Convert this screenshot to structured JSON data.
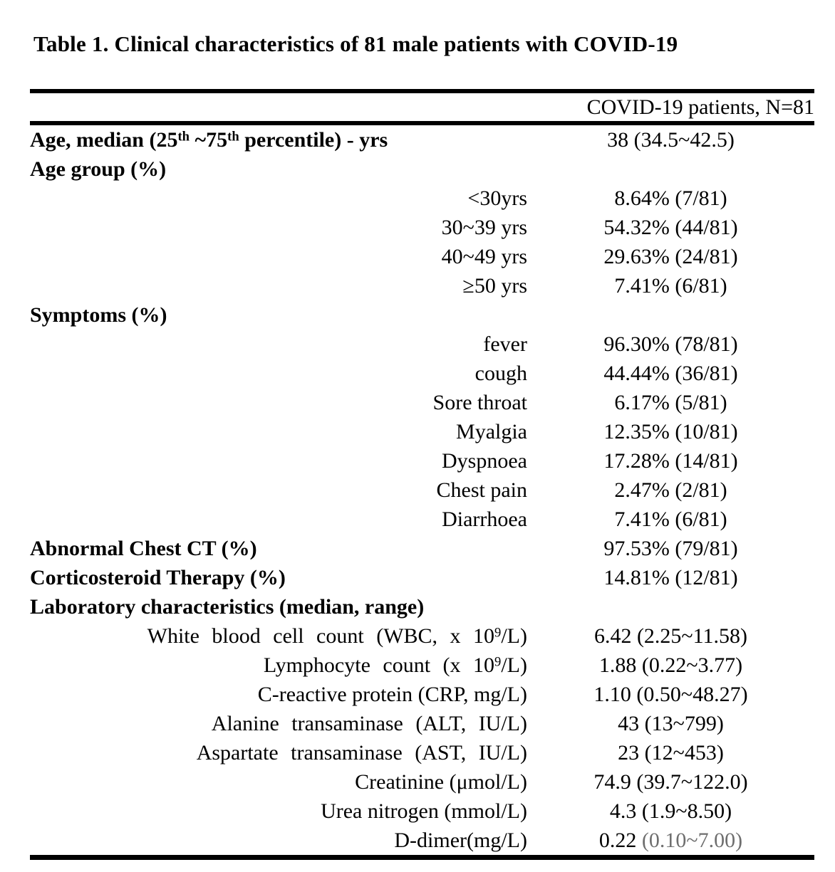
{
  "page": {
    "title": "Table 1. Clinical characteristics of 81 male patients with COVID-19"
  },
  "colors": {
    "background": "#ffffff",
    "text": "#000000",
    "rule": "#000000",
    "faded_value": "#6e6e6e"
  },
  "table": {
    "header": {
      "label_column": "",
      "value_column": "COVID-19 patients, N=81"
    },
    "rows": [
      {
        "bold": true,
        "label_parts": [
          {
            "text": "Age, median (25"
          },
          {
            "text": "th",
            "sup": true
          },
          {
            "text": " ~75"
          },
          {
            "text": "th",
            "sup": true
          },
          {
            "text": " percentile) - yrs"
          }
        ],
        "value_parts": [
          {
            "text": "38 (34.5~42.5)"
          }
        ]
      },
      {
        "bold": true,
        "label_parts": [
          {
            "text": "Age group (%)"
          }
        ],
        "value_parts": []
      },
      {
        "label_parts": [
          {
            "text": "<30yrs"
          }
        ],
        "value_parts": [
          {
            "text": "8.64% (7/81)"
          }
        ]
      },
      {
        "label_parts": [
          {
            "text": "30~39 yrs"
          }
        ],
        "value_parts": [
          {
            "text": "54.32% (44/81)"
          }
        ]
      },
      {
        "label_parts": [
          {
            "text": "40~49 yrs"
          }
        ],
        "value_parts": [
          {
            "text": "29.63% (24/81)"
          }
        ]
      },
      {
        "label_parts": [
          {
            "text": "≥50 yrs"
          }
        ],
        "value_parts": [
          {
            "text": "7.41% (6/81)"
          }
        ]
      },
      {
        "bold": true,
        "label_parts": [
          {
            "text": "Symptoms (%)"
          }
        ],
        "value_parts": []
      },
      {
        "label_parts": [
          {
            "text": "fever"
          }
        ],
        "value_parts": [
          {
            "text": "96.30% (78/81)"
          }
        ]
      },
      {
        "label_parts": [
          {
            "text": "cough"
          }
        ],
        "value_parts": [
          {
            "text": "44.44% (36/81)"
          }
        ]
      },
      {
        "label_parts": [
          {
            "text": "Sore throat"
          }
        ],
        "value_parts": [
          {
            "text": "6.17% (5/81)"
          }
        ]
      },
      {
        "label_parts": [
          {
            "text": "Myalgia"
          }
        ],
        "value_parts": [
          {
            "text": "12.35% (10/81)"
          }
        ]
      },
      {
        "label_parts": [
          {
            "text": "Dyspnoea"
          }
        ],
        "value_parts": [
          {
            "text": "17.28% (14/81)"
          }
        ]
      },
      {
        "label_parts": [
          {
            "text": "Chest pain"
          }
        ],
        "value_parts": [
          {
            "text": "2.47% (2/81)"
          }
        ]
      },
      {
        "label_parts": [
          {
            "text": "Diarrhoea"
          }
        ],
        "value_parts": [
          {
            "text": "7.41% (6/81)"
          }
        ]
      },
      {
        "bold": true,
        "label_parts": [
          {
            "text": "Abnormal Chest CT (%)"
          }
        ],
        "value_parts": [
          {
            "text": "97.53% (79/81)"
          }
        ]
      },
      {
        "bold": true,
        "label_parts": [
          {
            "text": "Corticosteroid Therapy (%)"
          }
        ],
        "value_parts": [
          {
            "text": "14.81% (12/81)"
          }
        ]
      },
      {
        "bold": true,
        "label_parts": [
          {
            "text": "Laboratory characteristics (median, range)"
          }
        ],
        "value_parts": []
      },
      {
        "wide": true,
        "label_parts": [
          {
            "text": "White blood cell count (WBC, x 10"
          },
          {
            "text": "9",
            "sup": true
          },
          {
            "text": "/L)"
          }
        ],
        "value_parts": [
          {
            "text": "6.42 (2.25~11.58)"
          }
        ]
      },
      {
        "wide": true,
        "label_parts": [
          {
            "text": "Lymphocyte count (x 10"
          },
          {
            "text": "9",
            "sup": true
          },
          {
            "text": "/L)"
          }
        ],
        "value_parts": [
          {
            "text": "1.88 (0.22~3.77)"
          }
        ]
      },
      {
        "label_parts": [
          {
            "text": "C-reactive protein (CRP, mg/L)"
          }
        ],
        "value_parts": [
          {
            "text": "1.10 (0.50~48.27)"
          }
        ]
      },
      {
        "wide": true,
        "label_parts": [
          {
            "text": "Alanine transaminase (ALT, IU/L)"
          }
        ],
        "value_parts": [
          {
            "text": "43 (13~799)"
          }
        ]
      },
      {
        "wide": true,
        "label_parts": [
          {
            "text": "Aspartate transaminase (AST, IU/L)"
          }
        ],
        "value_parts": [
          {
            "text": "23 (12~453)"
          }
        ]
      },
      {
        "label_parts": [
          {
            "text": "Creatinine (μmol/L)"
          }
        ],
        "value_parts": [
          {
            "text": "74.9 (39.7~122.0)"
          }
        ]
      },
      {
        "label_parts": [
          {
            "text": "Urea nitrogen (mmol/L)"
          }
        ],
        "value_parts": [
          {
            "text": "4.3 (1.9~8.50)"
          }
        ]
      },
      {
        "label_parts": [
          {
            "text": "D-dimer(mg/L)"
          }
        ],
        "value_parts": [
          {
            "text": "0.22 "
          },
          {
            "text": "(0.10~7.00)",
            "faded": true
          }
        ]
      }
    ]
  }
}
